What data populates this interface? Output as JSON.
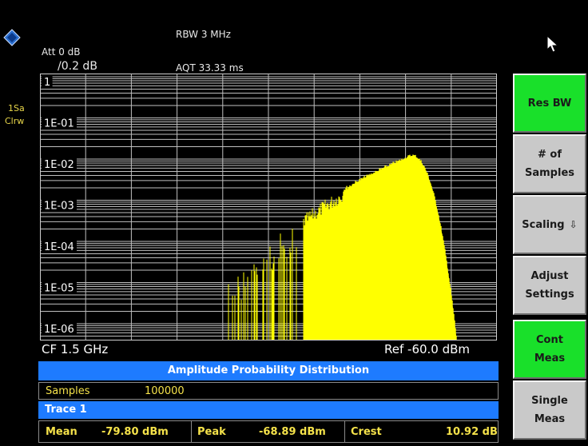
{
  "header": {
    "rbw": "RBW 3 MHz",
    "att": "Att  0 dB",
    "scale": "/0.2 dB",
    "aqt": "AQT 33.33 ms"
  },
  "side": {
    "trace_line1": "1Sa",
    "trace_line2": "Clrw"
  },
  "plot": {
    "y_ticks": [
      "1",
      "1E-01",
      "1E-02",
      "1E-03",
      "1E-04",
      "1E-05",
      "1E-06"
    ],
    "trace_color": "#ffff00",
    "grid_color": "#bfbfbf"
  },
  "footer": {
    "cf": "CF 1.5 GHz",
    "ref": "Ref -60.0 dBm"
  },
  "table": {
    "title": "Amplitude Probability Distribution",
    "samples_label": "Samples",
    "samples_value": "100000",
    "trace_label": "Trace 1",
    "mean_label": "Mean",
    "mean_value": "-79.80 dBm",
    "peak_label": "Peak",
    "peak_value": "-68.89 dBm",
    "crest_label": "Crest",
    "crest_value": "10.92 dB"
  },
  "softkeys": [
    {
      "label": "Res BW",
      "active": true
    },
    {
      "label": "# of\nSamples",
      "active": false
    },
    {
      "label": "Scaling",
      "active": false
    },
    {
      "label": "Adjust\nSettings",
      "active": false
    },
    {
      "label": "Cont\nMeas",
      "active": true
    },
    {
      "label": "Single\nMeas",
      "active": false
    }
  ],
  "colors": {
    "accent_blue": "#1e7bff",
    "active_green": "#19e02a",
    "label_yellow": "#f5e24a"
  },
  "icons": {
    "logo": "rohde-schwarz-logo",
    "cursor": "mouse-pointer-icon",
    "submenu": "submenu-arrow-icon"
  }
}
